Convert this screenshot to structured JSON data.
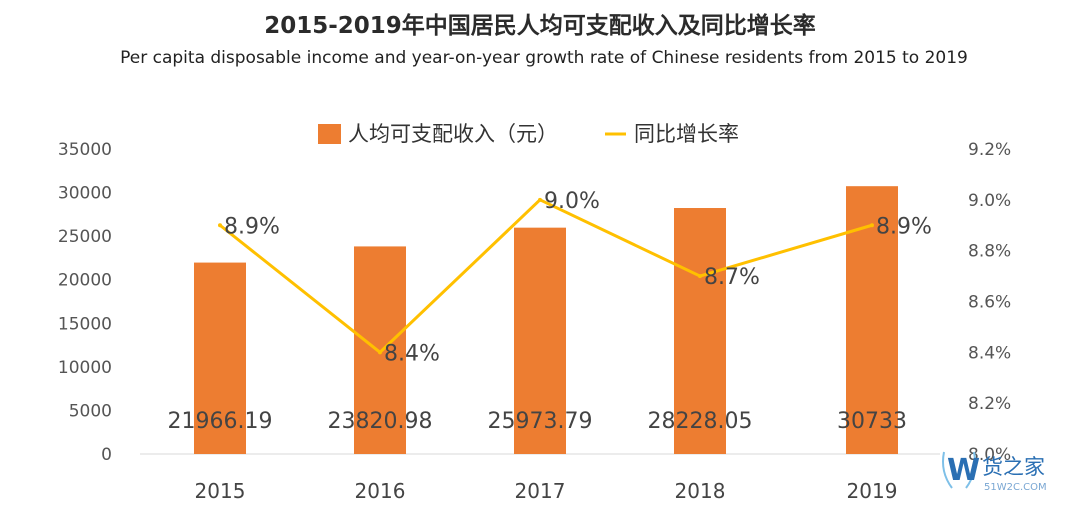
{
  "title": "2015-2019年中国居民人均可支配收入及同比增长率",
  "subtitle": "Per capita disposable income and year-on-year growth rate of Chinese residents from  2015 to 2019",
  "legend": {
    "bar_label": "人均可支配收入（元）",
    "line_label": "同比增长率"
  },
  "watermark": {
    "brand": "货之家",
    "site": "51W2C.COM"
  },
  "colors": {
    "bar": "#ED7D31",
    "line": "#FFC000"
  },
  "chart_data": {
    "type": "bar",
    "categories": [
      "2015",
      "2016",
      "2017",
      "2018",
      "2019"
    ],
    "series": [
      {
        "name": "人均可支配收入（元）",
        "type": "bar",
        "axis": "left",
        "values": [
          21966.19,
          23820.98,
          25973.79,
          28228.05,
          30733
        ],
        "labels": [
          "21966.19",
          "23820.98",
          "25973.79",
          "28228.05",
          "30733"
        ]
      },
      {
        "name": "同比增长率",
        "type": "line",
        "axis": "right",
        "values": [
          8.9,
          8.4,
          9.0,
          8.7,
          8.9
        ],
        "labels": [
          "8.9%",
          "8.4%",
          "9.0%",
          "8.7%",
          "8.9%"
        ]
      }
    ],
    "y_left": {
      "range": [
        0,
        35000
      ],
      "ticks": [
        "0",
        "5000",
        "10000",
        "15000",
        "20000",
        "25000",
        "30000",
        "35000"
      ]
    },
    "y_right": {
      "range": [
        8.0,
        9.2
      ],
      "ticks": [
        "8.0%",
        "8.2%",
        "8.4%",
        "8.6%",
        "8.8%",
        "9.0%",
        "9.2%"
      ]
    },
    "grid": false,
    "legend_position": "top"
  }
}
